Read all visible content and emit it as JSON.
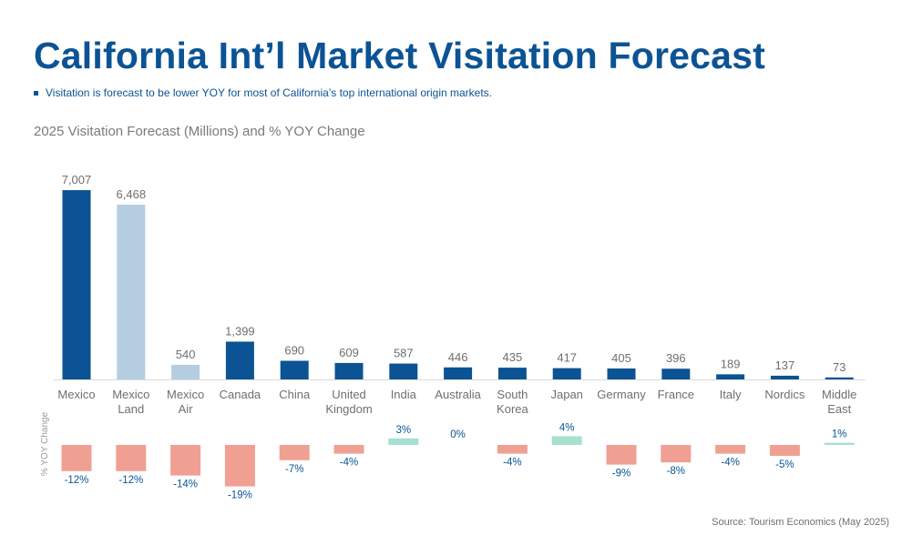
{
  "header": {
    "title": "California Int’l Market Visitation Forecast",
    "bullet": "Visitation is forecast to be lower YOY for most of California’s top international origin markets.",
    "subtitle": "2025 Visitation Forecast (Millions) and % YOY Change"
  },
  "footer": {
    "source": "Source: Tourism Economics (May 2025)"
  },
  "chart_data": {
    "type": "bar",
    "title": "2025 Visitation Forecast (Millions) and % YOY Change",
    "categories": [
      [
        "Mexico"
      ],
      [
        "Mexico",
        "Land"
      ],
      [
        "Mexico",
        "Air"
      ],
      [
        "Canada"
      ],
      [
        "China"
      ],
      [
        "United",
        "Kingdom"
      ],
      [
        "India"
      ],
      [
        "Australia"
      ],
      [
        "South",
        "Korea"
      ],
      [
        "Japan"
      ],
      [
        "Germany"
      ],
      [
        "France"
      ],
      [
        "Italy"
      ],
      [
        "Nordics"
      ],
      [
        "Middle",
        "East"
      ]
    ],
    "series": [
      {
        "name": "2025 Visitation Forecast",
        "values": [
          7007,
          6468,
          540,
          1399,
          690,
          609,
          587,
          446,
          435,
          417,
          405,
          396,
          189,
          137,
          73
        ],
        "labels": [
          "7,007",
          "6,468",
          "540",
          "1,399",
          "690",
          "609",
          "587",
          "446",
          "435",
          "417",
          "405",
          "396",
          "189",
          "137",
          "73"
        ],
        "colors": [
          "#0b5394",
          "#b4cde0",
          "#b4cde0",
          "#0b5394",
          "#0b5394",
          "#0b5394",
          "#0b5394",
          "#0b5394",
          "#0b5394",
          "#0b5394",
          "#0b5394",
          "#0b5394",
          "#0b5394",
          "#0b5394",
          "#0b5394"
        ]
      },
      {
        "name": "% YOY Change",
        "values": [
          -12,
          -12,
          -14,
          -19,
          -7,
          -4,
          3,
          0,
          -4,
          4,
          -9,
          -8,
          -4,
          -5,
          1
        ],
        "labels": [
          "-12%",
          "-12%",
          "-14%",
          "-19%",
          "-7%",
          "-4%",
          "3%",
          "0%",
          "-4%",
          "4%",
          "-9%",
          "-8%",
          "-4%",
          "-5%",
          "1%"
        ],
        "colors": {
          "negative": "#f0a092",
          "positive": "#a8e0cf"
        }
      }
    ],
    "ylabel_bottom": "% YOY Change",
    "ylim_top": [
      0,
      7007
    ],
    "ylim_bottom": [
      -19,
      4
    ]
  }
}
